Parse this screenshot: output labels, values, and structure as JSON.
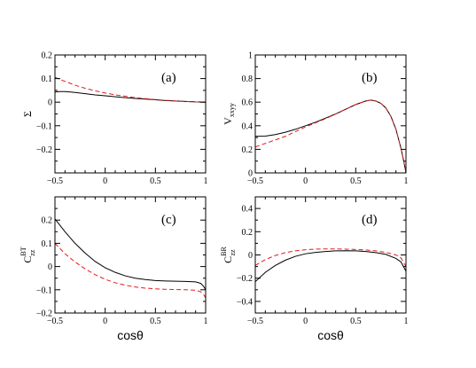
{
  "chart_data": [
    {
      "type": "line",
      "panel_label": "(a)",
      "ylabel": "Σ",
      "ylabel_sub": "",
      "ylabel_sup": "",
      "xlabel": "",
      "xlim": [
        -0.5,
        1
      ],
      "ylim": [
        -0.3,
        0.2
      ],
      "xticks": [
        -0.5,
        0,
        0.5,
        1
      ],
      "xticklabels": [
        "−0.5",
        "0",
        "0.5",
        "1"
      ],
      "yticks": [
        -0.3,
        -0.2,
        -0.1,
        0,
        0.1,
        0.2
      ],
      "yticklabels": [
        "",
        "−0.2",
        "−0.1",
        "0",
        "0.1",
        "0.2"
      ],
      "series": [
        {
          "style": "solid",
          "color": "#000000",
          "x": [
            -0.5,
            -0.45,
            -0.4,
            -0.3,
            -0.2,
            -0.1,
            0,
            0.1,
            0.2,
            0.3,
            0.4,
            0.5,
            0.6,
            0.7,
            0.8,
            0.9,
            1.0
          ],
          "y": [
            0.043,
            0.045,
            0.045,
            0.041,
            0.036,
            0.031,
            0.027,
            0.023,
            0.019,
            0.016,
            0.013,
            0.01,
            0.007,
            0.005,
            0.003,
            0.001,
            0.0
          ]
        },
        {
          "style": "dashed",
          "color": "#e31a1c",
          "x": [
            -0.5,
            -0.4,
            -0.3,
            -0.2,
            -0.1,
            0,
            0.1,
            0.2,
            0.3,
            0.4,
            0.5,
            0.6,
            0.7,
            0.8,
            0.9,
            1.0
          ],
          "y": [
            0.105,
            0.088,
            0.072,
            0.059,
            0.048,
            0.039,
            0.031,
            0.025,
            0.019,
            0.015,
            0.011,
            0.008,
            0.005,
            0.003,
            0.001,
            0.0
          ]
        }
      ]
    },
    {
      "type": "line",
      "panel_label": "(b)",
      "ylabel": "V",
      "ylabel_sub": "xxyy",
      "ylabel_sup": "",
      "xlabel": "",
      "xlim": [
        -0.5,
        1
      ],
      "ylim": [
        0,
        1
      ],
      "xticks": [
        -0.5,
        0,
        0.5,
        1
      ],
      "xticklabels": [
        "−0.5",
        "0",
        "0.5",
        "1"
      ],
      "yticks": [
        0,
        0.2,
        0.4,
        0.6,
        0.8,
        1
      ],
      "yticklabels": [
        "0",
        "0.2",
        "0.4",
        "0.6",
        "0.8",
        "1"
      ],
      "series": [
        {
          "style": "solid",
          "color": "#000000",
          "x": [
            -0.5,
            -0.4,
            -0.3,
            -0.2,
            -0.1,
            0,
            0.1,
            0.2,
            0.3,
            0.4,
            0.5,
            0.6,
            0.65,
            0.7,
            0.75,
            0.8,
            0.85,
            0.9,
            0.95,
            0.98,
            1.0
          ],
          "y": [
            0.31,
            0.312,
            0.325,
            0.345,
            0.37,
            0.4,
            0.43,
            0.465,
            0.5,
            0.54,
            0.58,
            0.61,
            0.617,
            0.61,
            0.59,
            0.55,
            0.48,
            0.37,
            0.21,
            0.09,
            0.0
          ]
        },
        {
          "style": "dashed",
          "color": "#e31a1c",
          "x": [
            -0.5,
            -0.4,
            -0.3,
            -0.2,
            -0.1,
            0,
            0.1,
            0.2,
            0.3,
            0.4,
            0.5,
            0.6,
            0.65,
            0.7,
            0.75,
            0.8,
            0.85,
            0.9,
            0.95,
            0.98,
            1.0
          ],
          "y": [
            0.22,
            0.25,
            0.28,
            0.31,
            0.35,
            0.39,
            0.425,
            0.46,
            0.5,
            0.54,
            0.58,
            0.61,
            0.617,
            0.61,
            0.59,
            0.55,
            0.48,
            0.37,
            0.21,
            0.09,
            0.0
          ]
        }
      ]
    },
    {
      "type": "line",
      "panel_label": "(c)",
      "ylabel": "C",
      "ylabel_sub": "zz",
      "ylabel_sup": "BT",
      "xlabel": "cosθ",
      "xlim": [
        -0.5,
        1
      ],
      "ylim": [
        -0.2,
        0.3
      ],
      "xticks": [
        -0.5,
        0,
        0.5,
        1
      ],
      "xticklabels": [
        "−0.5",
        "0",
        "0.5",
        "1"
      ],
      "yticks": [
        -0.2,
        -0.1,
        0,
        0.1,
        0.2,
        0.3
      ],
      "yticklabels": [
        "−0.2",
        "−0.1",
        "0",
        "0.1",
        "0.2",
        ""
      ],
      "series": [
        {
          "style": "solid",
          "color": "#000000",
          "x": [
            -0.5,
            -0.4,
            -0.3,
            -0.2,
            -0.1,
            0,
            0.1,
            0.2,
            0.3,
            0.4,
            0.5,
            0.6,
            0.7,
            0.8,
            0.9,
            0.95,
            0.98,
            1.0
          ],
          "y": [
            0.205,
            0.15,
            0.1,
            0.058,
            0.022,
            -0.005,
            -0.025,
            -0.04,
            -0.05,
            -0.056,
            -0.06,
            -0.062,
            -0.063,
            -0.064,
            -0.066,
            -0.072,
            -0.085,
            -0.1
          ]
        },
        {
          "style": "dashed",
          "color": "#e31a1c",
          "x": [
            -0.5,
            -0.4,
            -0.3,
            -0.2,
            -0.1,
            0,
            0.1,
            0.2,
            0.3,
            0.4,
            0.5,
            0.6,
            0.7,
            0.8,
            0.9,
            0.95,
            0.98,
            1.0
          ],
          "y": [
            0.1,
            0.055,
            0.02,
            -0.01,
            -0.035,
            -0.055,
            -0.07,
            -0.08,
            -0.088,
            -0.093,
            -0.096,
            -0.098,
            -0.099,
            -0.1,
            -0.102,
            -0.108,
            -0.12,
            -0.135
          ]
        }
      ]
    },
    {
      "type": "line",
      "panel_label": "(d)",
      "ylabel": "C",
      "ylabel_sub": "zz",
      "ylabel_sup": "BR",
      "xlabel": "cosθ",
      "xlim": [
        -0.5,
        1
      ],
      "ylim": [
        -0.5,
        0.5
      ],
      "xticks": [
        -0.5,
        0,
        0.5,
        1
      ],
      "xticklabels": [
        "−0.5",
        "0",
        "0.5",
        "1"
      ],
      "yticks": [
        -0.4,
        -0.2,
        0,
        0.2,
        0.4
      ],
      "yticklabels": [
        "−0.4",
        "−0.2",
        "0",
        "0.2",
        "0.4"
      ],
      "series": [
        {
          "style": "solid",
          "color": "#000000",
          "x": [
            -0.5,
            -0.4,
            -0.3,
            -0.2,
            -0.1,
            0,
            0.1,
            0.2,
            0.3,
            0.4,
            0.5,
            0.6,
            0.7,
            0.8,
            0.9,
            0.95,
            1.0
          ],
          "y": [
            -0.23,
            -0.15,
            -0.09,
            -0.045,
            -0.012,
            0.01,
            0.022,
            0.03,
            0.035,
            0.036,
            0.035,
            0.03,
            0.02,
            0.005,
            -0.03,
            -0.06,
            -0.14
          ]
        },
        {
          "style": "dashed",
          "color": "#e31a1c",
          "x": [
            -0.5,
            -0.4,
            -0.3,
            -0.2,
            -0.1,
            0,
            0.1,
            0.2,
            0.3,
            0.4,
            0.5,
            0.6,
            0.7,
            0.8,
            0.9,
            0.95,
            1.0
          ],
          "y": [
            -0.09,
            -0.04,
            -0.005,
            0.02,
            0.035,
            0.045,
            0.05,
            0.052,
            0.052,
            0.05,
            0.047,
            0.043,
            0.035,
            0.022,
            0.0,
            -0.025,
            -0.1
          ]
        }
      ]
    }
  ]
}
